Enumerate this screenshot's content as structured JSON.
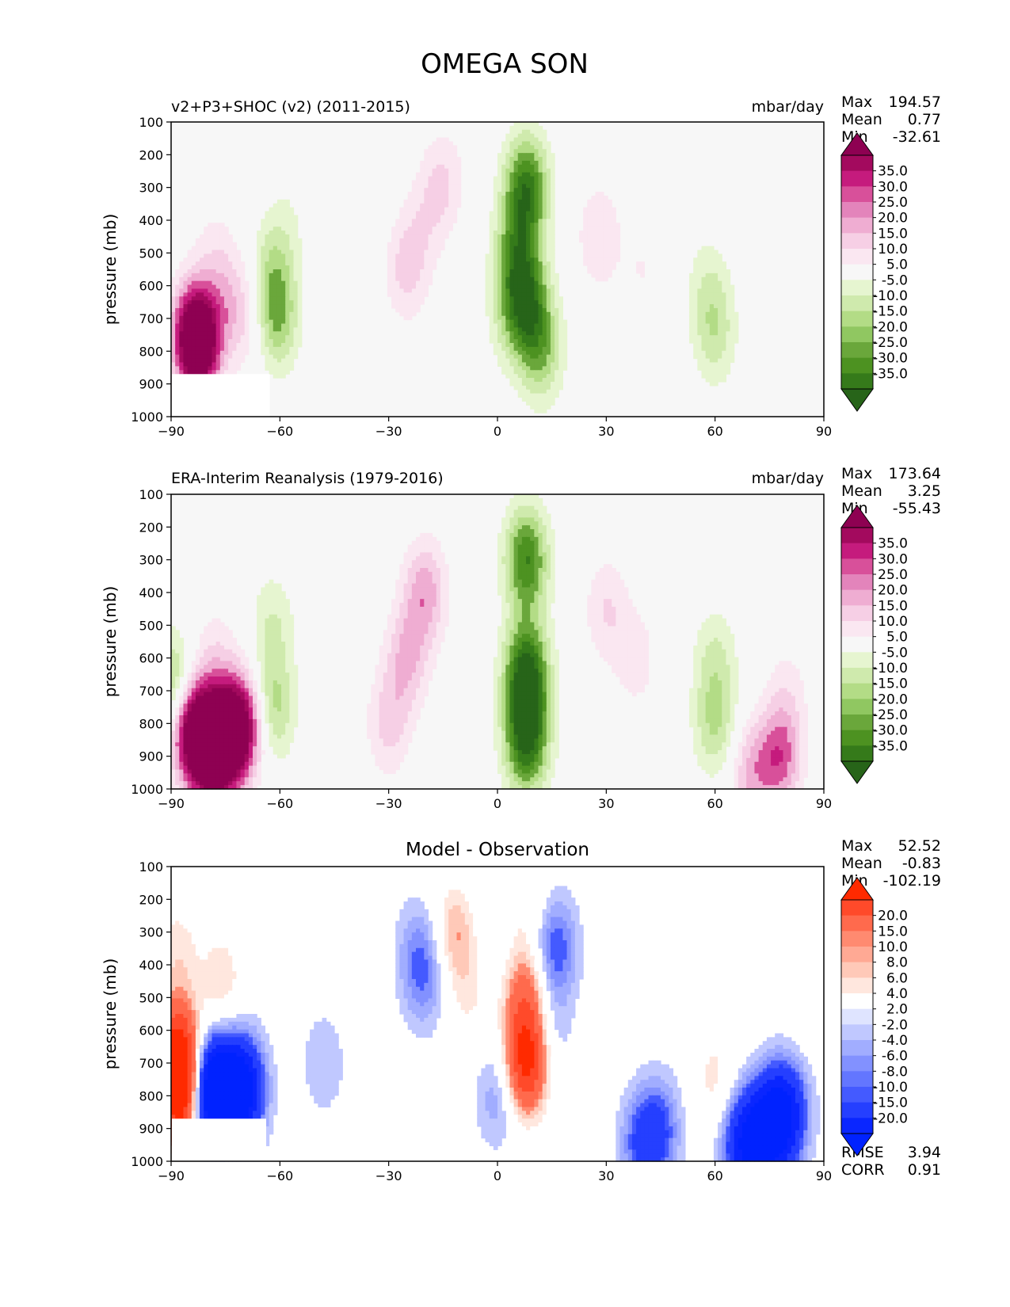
{
  "figure_title": "OMEGA SON",
  "chart_data": [
    {
      "type": "heatmap",
      "id": "model",
      "title_left": "v2+P3+SHOC (v2) (2011-2015)",
      "title_center": "",
      "units": "mbar/day",
      "ylabel": "pressure (mb)",
      "x_ticks": [
        "−90",
        "−60",
        "−30",
        "0",
        "30",
        "60",
        "90"
      ],
      "y_ticks": [
        "100",
        "200",
        "300",
        "400",
        "500",
        "600",
        "700",
        "800",
        "900",
        "1000"
      ],
      "xlim": [
        -90,
        90
      ],
      "ylim": [
        1000,
        100
      ],
      "stats": {
        "max_label": "Max",
        "max": "194.57",
        "mean_label": "Mean",
        "mean": "0.77",
        "min_label": "Min",
        "min": "-32.61"
      },
      "colorbar": {
        "labels": [
          "35.0",
          "30.0",
          "25.0",
          "20.0",
          "15.0",
          "10.0",
          "5.0",
          "-5.0",
          "-10.0",
          "-15.0",
          "-20.0",
          "-25.0",
          "-30.0",
          "-35.0"
        ],
        "colors": [
          "#8e0152",
          "#a30a5e",
          "#c51b7d",
          "#d8509a",
          "#e384bb",
          "#efadd2",
          "#f6cfe5",
          "#fae7f1",
          "#f7f7f7",
          "#e6f5d0",
          "#cfeaad",
          "#b3dc86",
          "#90c761",
          "#6aa73b",
          "#4d9221",
          "#357a1a",
          "#276419"
        ],
        "extend_top": "#8e0152",
        "extend_bottom": "#276419"
      },
      "features": [
        {
          "lat": -82,
          "p": 780,
          "v": 32
        },
        {
          "lat": -84,
          "p": 750,
          "v": 28
        },
        {
          "lat": -78,
          "p": 500,
          "v": 6
        },
        {
          "lat": -74,
          "p": 650,
          "v": 10
        },
        {
          "lat": -68,
          "p": 700,
          "v": 8
        },
        {
          "lat": -62,
          "p": 550,
          "v": -12
        },
        {
          "lat": -61,
          "p": 700,
          "v": -20
        },
        {
          "lat": -58,
          "p": 400,
          "v": -4
        },
        {
          "lat": -25,
          "p": 550,
          "v": 12
        },
        {
          "lat": -20,
          "p": 400,
          "v": 6
        },
        {
          "lat": -15,
          "p": 280,
          "v": 10
        },
        {
          "lat": 5,
          "p": 500,
          "v": -20
        },
        {
          "lat": 8,
          "p": 300,
          "v": -32
        },
        {
          "lat": 8,
          "p": 650,
          "v": -28
        },
        {
          "lat": 12,
          "p": 800,
          "v": -18
        },
        {
          "lat": 3,
          "p": 700,
          "v": -8
        },
        {
          "lat": 28,
          "p": 450,
          "v": 10
        },
        {
          "lat": 40,
          "p": 550,
          "v": 5
        },
        {
          "lat": 58,
          "p": 600,
          "v": -8
        },
        {
          "lat": 60,
          "p": 750,
          "v": -12
        },
        {
          "lat": 80,
          "p": 650,
          "v": 5
        }
      ]
    },
    {
      "type": "heatmap",
      "id": "obs",
      "title_left": "ERA-Interim Reanalysis (1979-2016)",
      "title_center": "",
      "units": "mbar/day",
      "ylabel": "pressure (mb)",
      "x_ticks": [
        "−90",
        "−60",
        "−30",
        "0",
        "30",
        "60",
        "90"
      ],
      "y_ticks": [
        "100",
        "200",
        "300",
        "400",
        "500",
        "600",
        "700",
        "800",
        "900",
        "1000"
      ],
      "xlim": [
        -90,
        90
      ],
      "ylim": [
        1000,
        100
      ],
      "stats": {
        "max_label": "Max",
        "max": "173.64",
        "mean_label": "Mean",
        "mean": "3.25",
        "min_label": "Min",
        "min": "-55.43"
      },
      "colorbar": {
        "labels": [
          "35.0",
          "30.0",
          "25.0",
          "20.0",
          "15.0",
          "10.0",
          "5.0",
          "-5.0",
          "-10.0",
          "-15.0",
          "-20.0",
          "-25.0",
          "-30.0",
          "-35.0"
        ],
        "colors": [
          "#8e0152",
          "#a30a5e",
          "#c51b7d",
          "#d8509a",
          "#e384bb",
          "#efadd2",
          "#f6cfe5",
          "#fae7f1",
          "#f7f7f7",
          "#e6f5d0",
          "#cfeaad",
          "#b3dc86",
          "#90c761",
          "#6aa73b",
          "#4d9221",
          "#357a1a",
          "#276419"
        ],
        "extend_top": "#8e0152",
        "extend_bottom": "#276419"
      },
      "features": [
        {
          "lat": -80,
          "p": 880,
          "v": 40
        },
        {
          "lat": -75,
          "p": 850,
          "v": 38
        },
        {
          "lat": -85,
          "p": 800,
          "v": 36
        },
        {
          "lat": -70,
          "p": 800,
          "v": 30
        },
        {
          "lat": -78,
          "p": 600,
          "v": 8
        },
        {
          "lat": -89,
          "p": 700,
          "v": -25
        },
        {
          "lat": -62,
          "p": 500,
          "v": -10
        },
        {
          "lat": -62,
          "p": 750,
          "v": -18
        },
        {
          "lat": -25,
          "p": 600,
          "v": 15
        },
        {
          "lat": -20,
          "p": 400,
          "v": 18
        },
        {
          "lat": -30,
          "p": 800,
          "v": 12
        },
        {
          "lat": 8,
          "p": 300,
          "v": -30
        },
        {
          "lat": 8,
          "p": 650,
          "v": -38
        },
        {
          "lat": 8,
          "p": 850,
          "v": -35
        },
        {
          "lat": 30,
          "p": 450,
          "v": 10
        },
        {
          "lat": 38,
          "p": 600,
          "v": 8
        },
        {
          "lat": 60,
          "p": 600,
          "v": -10
        },
        {
          "lat": 60,
          "p": 800,
          "v": -15
        },
        {
          "lat": 78,
          "p": 900,
          "v": 22
        },
        {
          "lat": 70,
          "p": 950,
          "v": 15
        },
        {
          "lat": 80,
          "p": 700,
          "v": 6
        }
      ]
    },
    {
      "type": "heatmap",
      "id": "diff",
      "title_left": "",
      "title_center": "Model - Observation",
      "units": "",
      "ylabel": "pressure (mb)",
      "x_ticks": [
        "−90",
        "−60",
        "−30",
        "0",
        "30",
        "60",
        "90"
      ],
      "y_ticks": [
        "100",
        "200",
        "300",
        "400",
        "500",
        "600",
        "700",
        "800",
        "900",
        "1000"
      ],
      "xlim": [
        -90,
        90
      ],
      "ylim": [
        1000,
        100
      ],
      "stats": {
        "max_label": "Max",
        "max": "52.52",
        "mean_label": "Mean",
        "mean": "-0.83",
        "min_label": "Min",
        "min": "-102.19"
      },
      "extra_stats": {
        "rmse_label": "RMSE",
        "rmse": "3.94",
        "corr_label": "CORR",
        "corr": "0.91"
      },
      "colorbar": {
        "labels": [
          "20.0",
          "15.0",
          "10.0",
          "8.0",
          "6.0",
          "4.0",
          "2.0",
          "-2.0",
          "-4.0",
          "-6.0",
          "-8.0",
          "-10.0",
          "-15.0",
          "-20.0"
        ],
        "colors": [
          "#ff2a00",
          "#ff4a2a",
          "#ff6a4d",
          "#ff8a70",
          "#ffa994",
          "#ffc9b8",
          "#ffe7de",
          "#ffffff",
          "#dfe4ff",
          "#c0c8ff",
          "#a1adff",
          "#8291ff",
          "#6376ff",
          "#445aff",
          "#253fff",
          "#0a26ff",
          "#0022ff"
        ],
        "extend_top": "#ff2a00",
        "extend_bottom": "#0022ff"
      },
      "features": [
        {
          "lat": -87,
          "p": 800,
          "v": 25
        },
        {
          "lat": -88,
          "p": 650,
          "v": 18
        },
        {
          "lat": -80,
          "p": 780,
          "v": -18
        },
        {
          "lat": -76,
          "p": 800,
          "v": -22
        },
        {
          "lat": -70,
          "p": 780,
          "v": -20
        },
        {
          "lat": -76,
          "p": 450,
          "v": 6
        },
        {
          "lat": -88,
          "p": 350,
          "v": 5
        },
        {
          "lat": -48,
          "p": 700,
          "v": -4
        },
        {
          "lat": -20,
          "p": 450,
          "v": -6
        },
        {
          "lat": -22,
          "p": 350,
          "v": -5
        },
        {
          "lat": -12,
          "p": 300,
          "v": 8
        },
        {
          "lat": -8,
          "p": 500,
          "v": 4
        },
        {
          "lat": 8,
          "p": 700,
          "v": 22
        },
        {
          "lat": 8,
          "p": 500,
          "v": 12
        },
        {
          "lat": 8,
          "p": 200,
          "v": 4
        },
        {
          "lat": 16,
          "p": 350,
          "v": -10
        },
        {
          "lat": 14,
          "p": 600,
          "v": -5
        },
        {
          "lat": 0,
          "p": 800,
          "v": -6
        },
        {
          "lat": 45,
          "p": 900,
          "v": -8
        },
        {
          "lat": 40,
          "p": 950,
          "v": -10
        },
        {
          "lat": 75,
          "p": 900,
          "v": -20
        },
        {
          "lat": 68,
          "p": 950,
          "v": -18
        },
        {
          "lat": 80,
          "p": 850,
          "v": -15
        },
        {
          "lat": 88,
          "p": 500,
          "v": 4
        },
        {
          "lat": 60,
          "p": 750,
          "v": 5
        }
      ]
    }
  ]
}
